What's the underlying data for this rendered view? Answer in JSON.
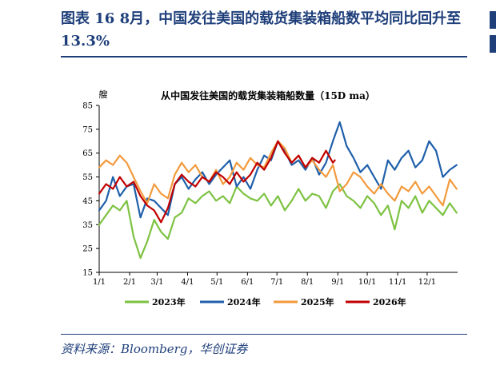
{
  "figure": {
    "title": "图表 16  8月，中国发往美国的载货集装箱船数平均同比回升至 13.3%",
    "source": "资料来源：Bloomberg，华创证券"
  },
  "colors": {
    "accent": "#1f3f7a"
  },
  "chart_data": {
    "type": "line",
    "title": "从中国发往美国的载货集装箱船数量（15D ma）",
    "ylabel": "艘",
    "ylim": [
      15,
      85
    ],
    "yticks": [
      "15",
      "25",
      "35",
      "45",
      "55",
      "65",
      "75",
      "85"
    ],
    "xlim": [
      0,
      365
    ],
    "xtick_labels": [
      "1/1",
      "2/1",
      "3/1",
      "4/1",
      "5/1",
      "6/1",
      "7/1",
      "8/1",
      "9/1",
      "10/1",
      "11/1",
      "12/1"
    ],
    "xtick_days": [
      0,
      31,
      59,
      90,
      120,
      151,
      181,
      212,
      243,
      273,
      304,
      334
    ],
    "legend_position": "bottom",
    "series": [
      {
        "name": "2023年",
        "color": "#7dc242",
        "x": [
          0,
          7,
          14,
          21,
          28,
          35,
          42,
          49,
          56,
          63,
          70,
          77,
          84,
          91,
          98,
          105,
          112,
          119,
          126,
          133,
          140,
          147,
          154,
          161,
          168,
          175,
          182,
          189,
          196,
          203,
          210,
          217,
          224,
          231,
          238,
          245,
          252,
          259,
          266,
          273,
          280,
          287,
          294,
          301,
          308,
          315,
          322,
          329,
          336,
          343,
          350,
          357,
          364
        ],
        "values": [
          35,
          39,
          43,
          41,
          45,
          30,
          21,
          28,
          37,
          32,
          29,
          38,
          40,
          46,
          44,
          47,
          49,
          45,
          47,
          44,
          51,
          48,
          46,
          45,
          48,
          43,
          47,
          41,
          45,
          50,
          45,
          48,
          47,
          42,
          49,
          52,
          47,
          45,
          42,
          47,
          44,
          39,
          43,
          33,
          45,
          42,
          47,
          40,
          45,
          42,
          39,
          44,
          40
        ]
      },
      {
        "name": "2024年",
        "color": "#1f5faa",
        "x": [
          0,
          7,
          14,
          21,
          28,
          35,
          42,
          49,
          56,
          63,
          70,
          77,
          84,
          91,
          98,
          105,
          112,
          119,
          126,
          133,
          140,
          147,
          154,
          161,
          168,
          175,
          182,
          189,
          196,
          203,
          210,
          217,
          224,
          231,
          238,
          245,
          252,
          259,
          266,
          273,
          280,
          287,
          294,
          301,
          308,
          315,
          322,
          329,
          336,
          343,
          350,
          357,
          364
        ],
        "values": [
          41,
          45,
          55,
          47,
          51,
          52,
          38,
          46,
          45,
          42,
          39,
          52,
          55,
          50,
          54,
          57,
          52,
          56,
          59,
          62,
          51,
          55,
          50,
          58,
          64,
          62,
          70,
          66,
          60,
          62,
          58,
          63,
          56,
          61,
          70,
          78,
          68,
          63,
          57,
          60,
          55,
          50,
          62,
          58,
          63,
          66,
          59,
          62,
          70,
          66,
          55,
          58,
          60
        ]
      },
      {
        "name": "2025年",
        "color": "#f39a3c",
        "x": [
          0,
          7,
          14,
          21,
          28,
          35,
          42,
          49,
          56,
          63,
          70,
          77,
          84,
          91,
          98,
          105,
          112,
          119,
          126,
          133,
          140,
          147,
          154,
          161,
          168,
          175,
          182,
          189,
          196,
          203,
          210,
          217,
          224,
          231,
          238,
          245,
          252,
          259,
          266,
          273,
          280,
          287,
          294,
          301,
          308,
          315,
          322,
          329,
          336,
          343,
          350,
          357,
          364
        ],
        "values": [
          59,
          62,
          60,
          64,
          61,
          55,
          49,
          44,
          52,
          48,
          46,
          56,
          61,
          57,
          60,
          55,
          53,
          58,
          52,
          55,
          61,
          58,
          63,
          60,
          59,
          65,
          70,
          67,
          61,
          64,
          59,
          62,
          58,
          55,
          60,
          49,
          52,
          57,
          55,
          51,
          48,
          52,
          48,
          45,
          51,
          49,
          53,
          48,
          51,
          47,
          43,
          54,
          50
        ]
      },
      {
        "name": "2026年",
        "color": "#c00000",
        "x": [
          0,
          7,
          14,
          21,
          28,
          35,
          42,
          49,
          56,
          63,
          70,
          77,
          84,
          91,
          98,
          105,
          112,
          119,
          126,
          133,
          140,
          147,
          154,
          161,
          168,
          175,
          182,
          189,
          196,
          203,
          210,
          217,
          224,
          231,
          238,
          240
        ],
        "values": [
          48,
          52,
          50,
          55,
          51,
          53,
          47,
          43,
          41,
          36,
          42,
          52,
          56,
          53,
          51,
          55,
          53,
          57,
          55,
          52,
          57,
          53,
          56,
          61,
          58,
          63,
          70,
          65,
          61,
          64,
          59,
          63,
          61,
          66,
          61,
          62
        ]
      }
    ]
  }
}
